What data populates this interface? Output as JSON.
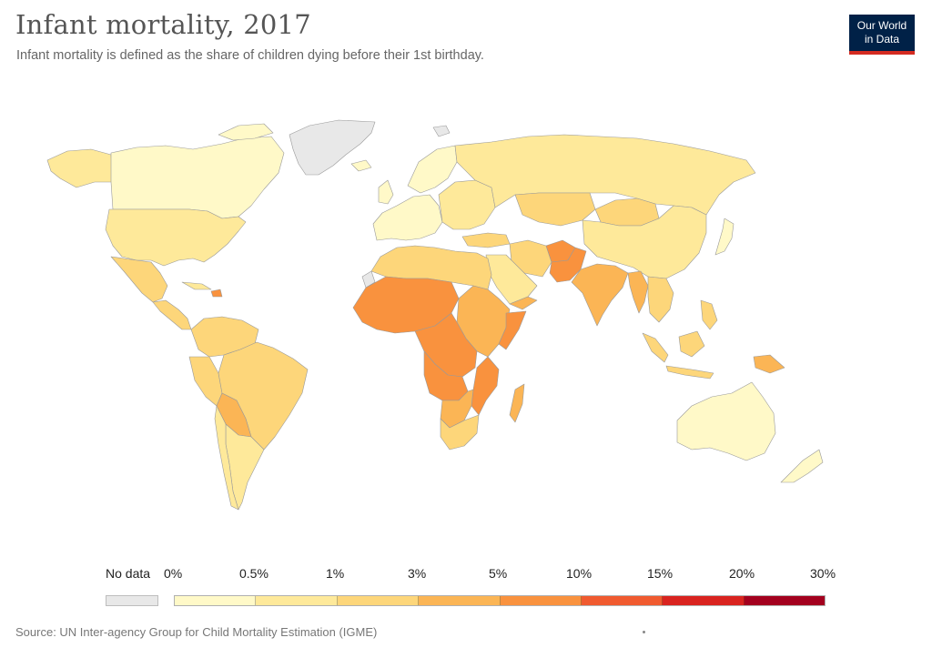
{
  "title": "Infant mortality, 2017",
  "subtitle": "Infant mortality is defined as the share of children dying before their 1st birthday.",
  "logo": {
    "line1": "Our World",
    "line2": "in Data",
    "bg": "#002147",
    "accent": "#d42b21"
  },
  "legend": {
    "nodata_label": "No data",
    "nodata_color": "#e8e8e8",
    "ticks": [
      "0%",
      "0.5%",
      "1%",
      "3%",
      "5%",
      "10%",
      "15%",
      "20%",
      "30%"
    ],
    "colors": [
      "#fff9c8",
      "#fee99a",
      "#fdd67a",
      "#fbb555",
      "#f9923e",
      "#f05a2f",
      "#d9231f",
      "#a3001e"
    ]
  },
  "source": "Source: UN Inter-agency Group for Child Mortality Estimation (IGME)",
  "map": {
    "regions": [
      {
        "name": "Greenland",
        "bin": -1
      },
      {
        "name": "Canada",
        "bin": 0
      },
      {
        "name": "Alaska",
        "bin": 1
      },
      {
        "name": "United States",
        "bin": 1
      },
      {
        "name": "Mexico",
        "bin": 2
      },
      {
        "name": "Central America",
        "bin": 2
      },
      {
        "name": "Cuba",
        "bin": 1
      },
      {
        "name": "Haiti",
        "bin": 4
      },
      {
        "name": "Colombia & Venezuela",
        "bin": 2
      },
      {
        "name": "Brazil",
        "bin": 2
      },
      {
        "name": "Peru",
        "bin": 2
      },
      {
        "name": "Bolivia & Paraguay",
        "bin": 3
      },
      {
        "name": "Argentina",
        "bin": 1
      },
      {
        "name": "Chile",
        "bin": 1
      },
      {
        "name": "Western Europe",
        "bin": 0
      },
      {
        "name": "Scandinavia",
        "bin": 0
      },
      {
        "name": "Iceland",
        "bin": 0
      },
      {
        "name": "United Kingdom",
        "bin": 0
      },
      {
        "name": "Eastern Europe",
        "bin": 1
      },
      {
        "name": "Russia",
        "bin": 1
      },
      {
        "name": "Kazakhstan",
        "bin": 2
      },
      {
        "name": "Mongolia",
        "bin": 2
      },
      {
        "name": "China",
        "bin": 1
      },
      {
        "name": "Japan",
        "bin": 0
      },
      {
        "name": "Turkey",
        "bin": 2
      },
      {
        "name": "Iran",
        "bin": 2
      },
      {
        "name": "Afghanistan",
        "bin": 4
      },
      {
        "name": "Pakistan",
        "bin": 4
      },
      {
        "name": "India",
        "bin": 3
      },
      {
        "name": "Myanmar",
        "bin": 3
      },
      {
        "name": "Southeast Asia",
        "bin": 2
      },
      {
        "name": "Indonesia",
        "bin": 2
      },
      {
        "name": "Papua New Guinea",
        "bin": 3
      },
      {
        "name": "Philippines",
        "bin": 2
      },
      {
        "name": "Saudi Arabia",
        "bin": 1
      },
      {
        "name": "Yemen",
        "bin": 3
      },
      {
        "name": "North Africa",
        "bin": 2
      },
      {
        "name": "Western Sahara",
        "bin": -1
      },
      {
        "name": "Sahel & West Africa",
        "bin": 4
      },
      {
        "name": "Central Africa",
        "bin": 4
      },
      {
        "name": "East Africa",
        "bin": 3
      },
      {
        "name": "Somalia",
        "bin": 4
      },
      {
        "name": "Angola & DRC South",
        "bin": 4
      },
      {
        "name": "Mozambique",
        "bin": 4
      },
      {
        "name": "Southern Africa",
        "bin": 3
      },
      {
        "name": "South Africa",
        "bin": 2
      },
      {
        "name": "Madagascar",
        "bin": 3
      },
      {
        "name": "Australia",
        "bin": 0
      },
      {
        "name": "New Zealand",
        "bin": 0
      },
      {
        "name": "Svalbard",
        "bin": -1
      }
    ]
  }
}
